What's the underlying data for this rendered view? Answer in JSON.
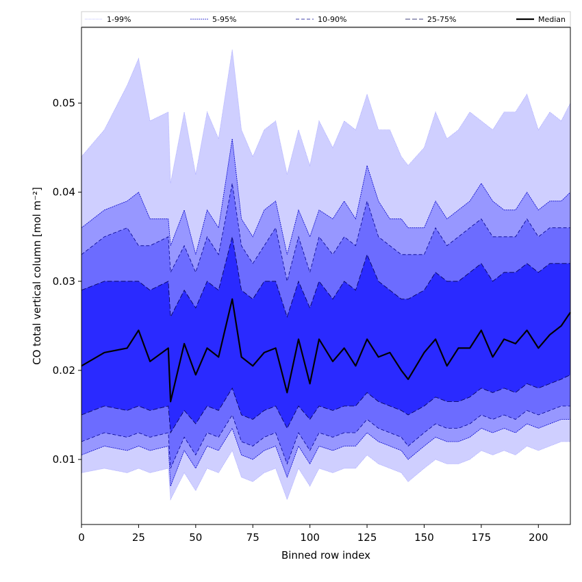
{
  "chart_data": {
    "type": "area",
    "title": "",
    "xlabel": "Binned row index",
    "ylabel": "CO total vertical column [mol m⁻²]",
    "xlim": [
      0,
      214
    ],
    "ylim": [
      0.0027,
      0.0585
    ],
    "xticks": [
      0,
      25,
      50,
      75,
      100,
      125,
      150,
      175,
      200
    ],
    "yticks": [
      0.01,
      0.02,
      0.03,
      0.04,
      0.05
    ],
    "ytick_labels": [
      "0.01",
      "0.02",
      "0.03",
      "0.04",
      "0.05"
    ],
    "grid": false,
    "legend_position": "top, spanning full width",
    "bands": [
      {
        "name": "1-99%",
        "lower_pct": 1,
        "upper_pct": 99,
        "fill": "#cfcfff",
        "edge": "#a0a0ff",
        "dash": "1,1"
      },
      {
        "name": "5-95%",
        "lower_pct": 5,
        "upper_pct": 95,
        "fill": "#9797ff",
        "edge": "#0000c8",
        "dash": "2,1"
      },
      {
        "name": "10-90%",
        "lower_pct": 10,
        "upper_pct": 90,
        "fill": "#6c6cff",
        "edge": "#00008c",
        "dash": "5,3"
      },
      {
        "name": "25-75%",
        "lower_pct": 25,
        "upper_pct": 75,
        "fill": "#2a2aff",
        "edge": "#000050",
        "dash": "7,3"
      }
    ],
    "median": {
      "name": "Median",
      "color": "#000000"
    },
    "x": [
      0,
      10,
      20,
      25,
      30,
      38,
      39,
      45,
      50,
      55,
      60,
      66,
      70,
      75,
      80,
      85,
      90,
      95,
      100,
      104,
      110,
      115,
      120,
      125,
      130,
      135,
      140,
      143,
      150,
      155,
      160,
      165,
      170,
      175,
      180,
      185,
      190,
      195,
      200,
      205,
      210,
      214
    ],
    "series": [
      {
        "name": "1-99% upper",
        "values": [
          0.044,
          0.047,
          0.052,
          0.055,
          0.048,
          0.049,
          0.041,
          0.049,
          0.042,
          0.049,
          0.046,
          0.056,
          0.047,
          0.044,
          0.047,
          0.048,
          0.042,
          0.047,
          0.043,
          0.048,
          0.045,
          0.048,
          0.047,
          0.051,
          0.047,
          0.047,
          0.044,
          0.043,
          0.045,
          0.049,
          0.046,
          0.047,
          0.049,
          0.048,
          0.047,
          0.049,
          0.049,
          0.051,
          0.047,
          0.049,
          0.048,
          0.05
        ]
      },
      {
        "name": "5-95% upper",
        "values": [
          0.036,
          0.038,
          0.039,
          0.04,
          0.037,
          0.037,
          0.034,
          0.038,
          0.033,
          0.038,
          0.036,
          0.046,
          0.037,
          0.035,
          0.038,
          0.039,
          0.033,
          0.038,
          0.035,
          0.038,
          0.037,
          0.039,
          0.037,
          0.043,
          0.039,
          0.037,
          0.037,
          0.036,
          0.036,
          0.039,
          0.037,
          0.038,
          0.039,
          0.041,
          0.039,
          0.038,
          0.038,
          0.04,
          0.038,
          0.039,
          0.039,
          0.04
        ]
      },
      {
        "name": "10-90% upper",
        "values": [
          0.033,
          0.035,
          0.036,
          0.034,
          0.034,
          0.035,
          0.031,
          0.034,
          0.031,
          0.035,
          0.033,
          0.041,
          0.034,
          0.032,
          0.034,
          0.036,
          0.03,
          0.035,
          0.031,
          0.035,
          0.033,
          0.035,
          0.034,
          0.039,
          0.035,
          0.034,
          0.033,
          0.033,
          0.033,
          0.036,
          0.034,
          0.035,
          0.036,
          0.037,
          0.035,
          0.035,
          0.035,
          0.037,
          0.035,
          0.036,
          0.036,
          0.036
        ]
      },
      {
        "name": "25-75% upper",
        "values": [
          0.029,
          0.03,
          0.03,
          0.03,
          0.029,
          0.03,
          0.026,
          0.029,
          0.027,
          0.03,
          0.029,
          0.035,
          0.029,
          0.028,
          0.03,
          0.03,
          0.026,
          0.03,
          0.027,
          0.03,
          0.028,
          0.03,
          0.029,
          0.033,
          0.03,
          0.029,
          0.028,
          0.028,
          0.029,
          0.031,
          0.03,
          0.03,
          0.031,
          0.032,
          0.03,
          0.031,
          0.031,
          0.032,
          0.031,
          0.032,
          0.032,
          0.032
        ]
      },
      {
        "name": "Median",
        "values": [
          0.0205,
          0.022,
          0.0225,
          0.0245,
          0.021,
          0.0225,
          0.0165,
          0.023,
          0.0195,
          0.0225,
          0.0215,
          0.028,
          0.0215,
          0.0205,
          0.022,
          0.0225,
          0.0175,
          0.0235,
          0.0185,
          0.0235,
          0.021,
          0.0225,
          0.0205,
          0.0235,
          0.0215,
          0.022,
          0.02,
          0.019,
          0.022,
          0.0235,
          0.0205,
          0.0225,
          0.0225,
          0.0245,
          0.0215,
          0.0235,
          0.023,
          0.0245,
          0.0225,
          0.024,
          0.025,
          0.0265
        ]
      },
      {
        "name": "25-75% lower",
        "values": [
          0.015,
          0.016,
          0.0155,
          0.016,
          0.0155,
          0.016,
          0.013,
          0.0155,
          0.014,
          0.016,
          0.0155,
          0.018,
          0.015,
          0.0145,
          0.0155,
          0.016,
          0.0135,
          0.016,
          0.0145,
          0.016,
          0.0155,
          0.016,
          0.016,
          0.0175,
          0.0165,
          0.016,
          0.0155,
          0.015,
          0.016,
          0.017,
          0.0165,
          0.0165,
          0.017,
          0.018,
          0.0175,
          0.018,
          0.0175,
          0.0185,
          0.018,
          0.0185,
          0.019,
          0.0195
        ]
      },
      {
        "name": "10-90% lower",
        "values": [
          0.012,
          0.013,
          0.0125,
          0.013,
          0.0125,
          0.013,
          0.009,
          0.0125,
          0.0105,
          0.013,
          0.0125,
          0.015,
          0.012,
          0.0115,
          0.0125,
          0.013,
          0.0095,
          0.013,
          0.011,
          0.013,
          0.0125,
          0.013,
          0.013,
          0.0145,
          0.0135,
          0.013,
          0.0125,
          0.0115,
          0.013,
          0.014,
          0.0135,
          0.0135,
          0.014,
          0.015,
          0.0145,
          0.015,
          0.0145,
          0.0155,
          0.015,
          0.0155,
          0.016,
          0.016
        ]
      },
      {
        "name": "5-95% lower",
        "values": [
          0.0105,
          0.0115,
          0.011,
          0.0115,
          0.011,
          0.0115,
          0.007,
          0.011,
          0.009,
          0.0115,
          0.011,
          0.0135,
          0.0105,
          0.01,
          0.011,
          0.0115,
          0.008,
          0.0115,
          0.0095,
          0.0115,
          0.011,
          0.0115,
          0.0115,
          0.013,
          0.012,
          0.0115,
          0.011,
          0.01,
          0.0115,
          0.0125,
          0.012,
          0.012,
          0.0125,
          0.0135,
          0.013,
          0.0135,
          0.013,
          0.014,
          0.0135,
          0.014,
          0.0145,
          0.0145
        ]
      },
      {
        "name": "1-99% lower",
        "values": [
          0.0085,
          0.009,
          0.0085,
          0.009,
          0.0085,
          0.009,
          0.0055,
          0.0085,
          0.0065,
          0.009,
          0.0085,
          0.011,
          0.008,
          0.0075,
          0.0085,
          0.009,
          0.0055,
          0.009,
          0.007,
          0.009,
          0.0085,
          0.009,
          0.009,
          0.0105,
          0.0095,
          0.009,
          0.0085,
          0.0075,
          0.009,
          0.01,
          0.0095,
          0.0095,
          0.01,
          0.011,
          0.0105,
          0.011,
          0.0105,
          0.0115,
          0.011,
          0.0115,
          0.012,
          0.012
        ]
      }
    ]
  }
}
